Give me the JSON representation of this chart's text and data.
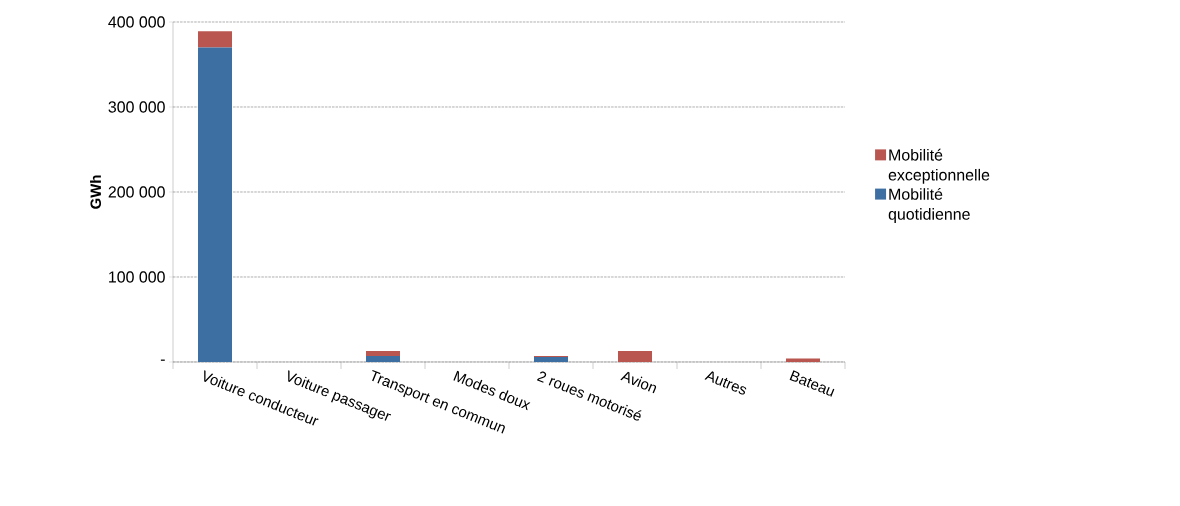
{
  "chart_data": {
    "type": "bar",
    "stacked": true,
    "ylabel": "GWh",
    "categories": [
      "Voiture conducteur",
      "Voiture passager",
      "Transport en commun",
      "Modes doux",
      "2 roues motorisé",
      "Avion",
      "Autres",
      "Bateau"
    ],
    "series": [
      {
        "name": "Mobilité quotidienne",
        "color": "#3e6fa3",
        "values": [
          370000,
          0,
          7000,
          0,
          6000,
          0,
          0,
          0
        ]
      },
      {
        "name": "Mobilité exceptionnelle",
        "color": "#b9564f",
        "values": [
          19000,
          0,
          6000,
          0,
          1000,
          13000,
          0,
          4000
        ]
      }
    ],
    "ylim": [
      0,
      400000
    ],
    "yticks": [
      {
        "value": 0,
        "label": "-"
      },
      {
        "value": 100000,
        "label": "100 000"
      },
      {
        "value": 200000,
        "label": "200 000"
      },
      {
        "value": 300000,
        "label": "300 000"
      },
      {
        "value": 400000,
        "label": "400 000"
      }
    ],
    "grid": "y",
    "legend": "right"
  }
}
